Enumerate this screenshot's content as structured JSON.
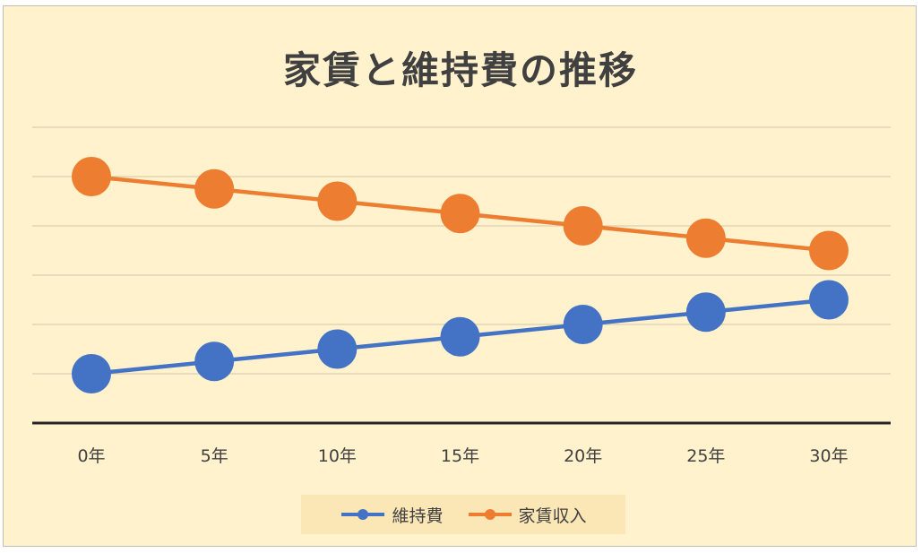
{
  "colors": {
    "background": "#fff2cc",
    "grid": "#d9cfb0",
    "axis": "#262626",
    "text": "#404040"
  },
  "chart_data": {
    "type": "line",
    "title": "家賃と維持費の推移",
    "categories": [
      "0年",
      "5年",
      "10年",
      "15年",
      "20年",
      "25年",
      "30年"
    ],
    "series": [
      {
        "name": "維持費",
        "color": "#4472c4",
        "values": [
          1,
          1.25,
          1.5,
          1.75,
          2,
          2.25,
          2.5
        ]
      },
      {
        "name": "家賃収入",
        "color": "#ed7d31",
        "values": [
          5,
          4.75,
          4.5,
          4.25,
          4,
          3.75,
          3.5
        ]
      }
    ],
    "ylim": [
      0,
      6
    ],
    "y_gridlines": [
      1,
      2,
      3,
      4,
      5,
      6
    ],
    "y_tick_labels_visible": false,
    "grid": true,
    "legend_position": "bottom",
    "markers": "circle"
  }
}
